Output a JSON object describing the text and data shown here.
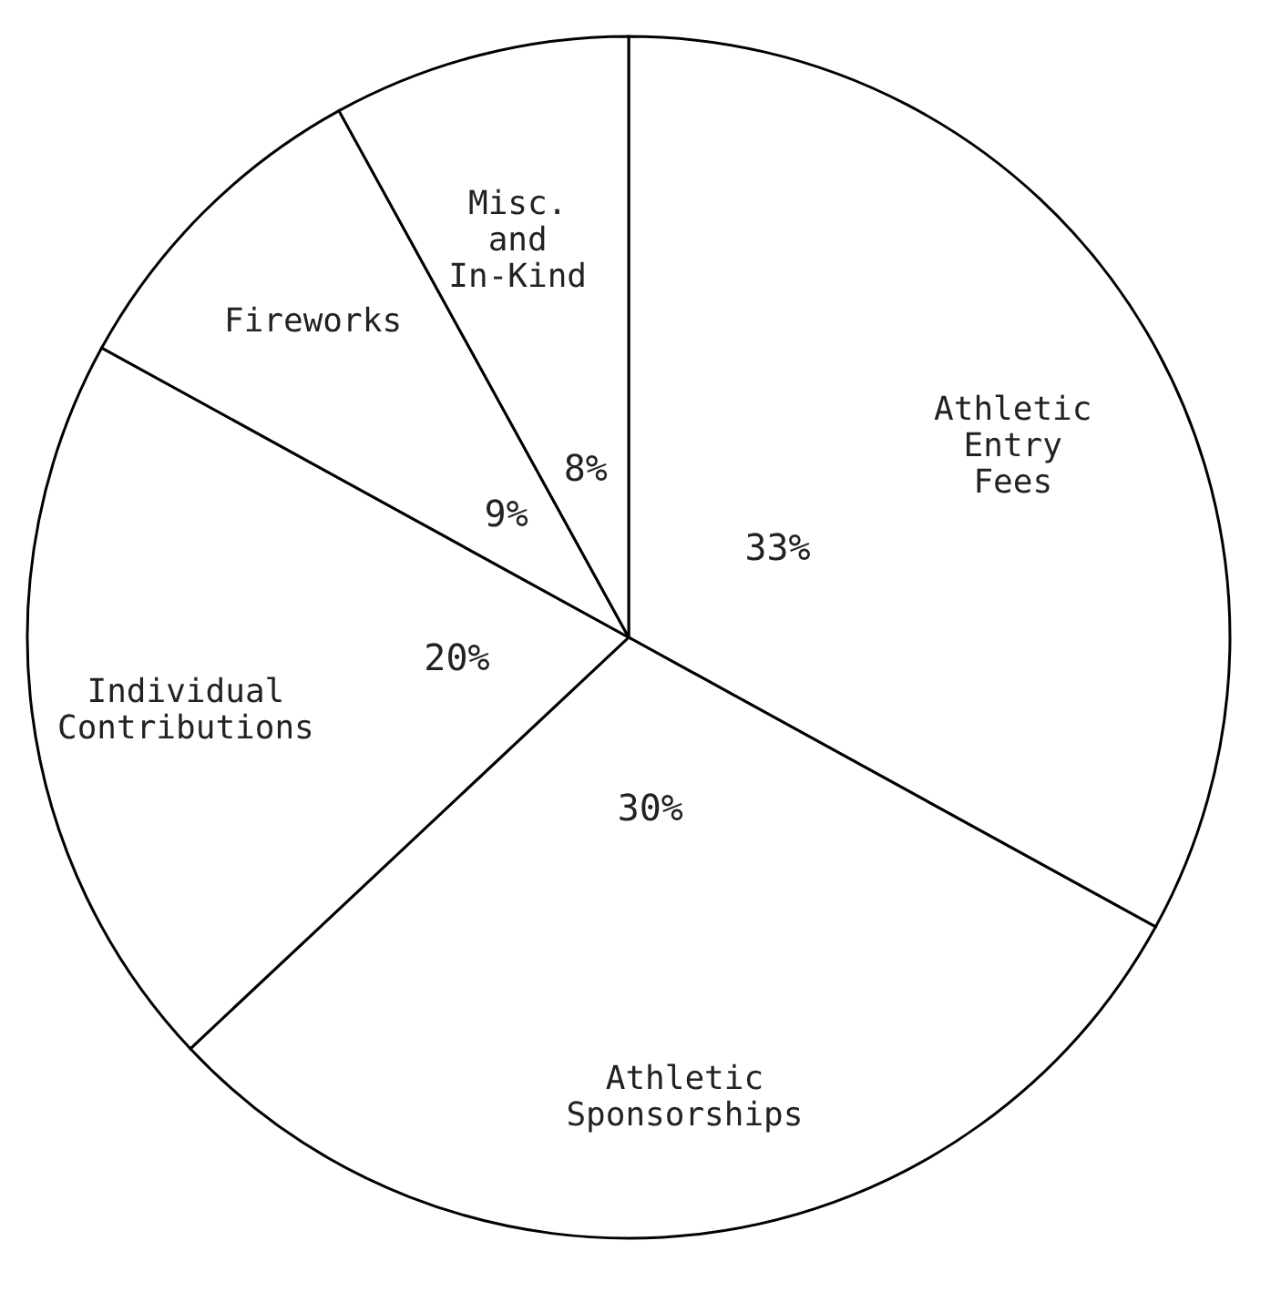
{
  "chart_data": {
    "type": "pie",
    "categories": [
      "Athletic Entry Fees",
      "Athletic Sponsorships",
      "Individual Contributions",
      "Fireworks",
      "Misc. and In-Kind"
    ],
    "values": [
      33,
      30,
      20,
      9,
      8
    ],
    "value_labels": [
      "33%",
      "30%",
      "20%",
      "9%",
      "8%"
    ],
    "colors": [
      "#ffffff",
      "#ffffff",
      "#ffffff",
      "#ffffff",
      "#ffffff"
    ]
  }
}
